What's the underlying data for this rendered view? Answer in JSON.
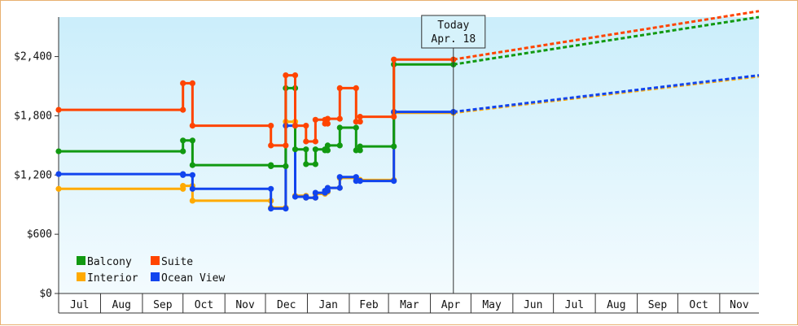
{
  "chart_data": {
    "type": "line",
    "subtype": "step",
    "ylim": [
      0,
      2800
    ],
    "y_ticks": [
      {
        "value": 0,
        "label": "$0"
      },
      {
        "value": 600,
        "label": "$600"
      },
      {
        "value": 1200,
        "label": "$1,200"
      },
      {
        "value": 1800,
        "label": "$1,800"
      },
      {
        "value": 2400,
        "label": "$2,400"
      }
    ],
    "x_range": [
      "2023-07-01",
      "2024-11-30"
    ],
    "x_ticks": [
      {
        "date": "2023-07-01",
        "label": "Jul"
      },
      {
        "date": "2023-08-01",
        "label": "Aug"
      },
      {
        "date": "2023-09-01",
        "label": "Sep"
      },
      {
        "date": "2023-10-01",
        "label": "Oct"
      },
      {
        "date": "2023-11-01",
        "label": "Nov"
      },
      {
        "date": "2023-12-01",
        "label": "Dec"
      },
      {
        "date": "2024-01-01",
        "label": "Jan"
      },
      {
        "date": "2024-02-01",
        "label": "Feb"
      },
      {
        "date": "2024-03-01",
        "label": "Mar"
      },
      {
        "date": "2024-04-01",
        "label": "Apr"
      },
      {
        "date": "2024-05-01",
        "label": "May"
      },
      {
        "date": "2024-06-01",
        "label": "Jun"
      },
      {
        "date": "2024-07-01",
        "label": "Jul"
      },
      {
        "date": "2024-08-01",
        "label": "Aug"
      },
      {
        "date": "2024-09-01",
        "label": "Sep"
      },
      {
        "date": "2024-10-01",
        "label": "Oct"
      },
      {
        "date": "2024-11-01",
        "label": "Nov"
      }
    ],
    "today": {
      "date": "2024-04-18",
      "line1": "Today",
      "line2": "Apr. 18"
    },
    "legend_placement": "bottom-left",
    "grid": false,
    "series": [
      {
        "name": "Balcony",
        "color": "#119911",
        "points": [
          [
            "2023-07-01",
            1440
          ],
          [
            "2023-10-01",
            1440
          ],
          [
            "2023-10-01",
            1550
          ],
          [
            "2023-10-08",
            1550
          ],
          [
            "2023-10-08",
            1300
          ],
          [
            "2023-12-05",
            1300
          ],
          [
            "2023-12-05",
            1290
          ],
          [
            "2023-12-16",
            1290
          ],
          [
            "2023-12-16",
            2080
          ],
          [
            "2023-12-23",
            2080
          ],
          [
            "2023-12-23",
            1460
          ],
          [
            "2023-12-31",
            1460
          ],
          [
            "2023-12-31",
            1310
          ],
          [
            "2024-01-07",
            1310
          ],
          [
            "2024-01-07",
            1460
          ],
          [
            "2024-01-14",
            1460
          ],
          [
            "2024-01-14",
            1450
          ],
          [
            "2024-01-16",
            1450
          ],
          [
            "2024-01-16",
            1500
          ],
          [
            "2024-01-25",
            1500
          ],
          [
            "2024-01-25",
            1680
          ],
          [
            "2024-02-06",
            1680
          ],
          [
            "2024-02-06",
            1450
          ],
          [
            "2024-02-09",
            1450
          ],
          [
            "2024-02-09",
            1490
          ],
          [
            "2024-03-05",
            1490
          ],
          [
            "2024-03-05",
            2320
          ],
          [
            "2024-04-18",
            2320
          ]
        ],
        "forecast": [
          [
            "2024-04-18",
            2320
          ],
          [
            "2024-11-30",
            2800
          ]
        ]
      },
      {
        "name": "Suite",
        "color": "#ff4400",
        "points": [
          [
            "2023-07-01",
            1860
          ],
          [
            "2023-10-01",
            1860
          ],
          [
            "2023-10-01",
            2130
          ],
          [
            "2023-10-08",
            2130
          ],
          [
            "2023-10-08",
            1700
          ],
          [
            "2023-12-05",
            1700
          ],
          [
            "2023-12-05",
            1500
          ],
          [
            "2023-12-16",
            1500
          ],
          [
            "2023-12-16",
            2210
          ],
          [
            "2023-12-23",
            2210
          ],
          [
            "2023-12-23",
            1700
          ],
          [
            "2023-12-31",
            1700
          ],
          [
            "2023-12-31",
            1540
          ],
          [
            "2024-01-07",
            1540
          ],
          [
            "2024-01-07",
            1760
          ],
          [
            "2024-01-14",
            1760
          ],
          [
            "2024-01-14",
            1720
          ],
          [
            "2024-01-16",
            1720
          ],
          [
            "2024-01-16",
            1770
          ],
          [
            "2024-01-25",
            1770
          ],
          [
            "2024-01-25",
            2080
          ],
          [
            "2024-02-06",
            2080
          ],
          [
            "2024-02-06",
            1740
          ],
          [
            "2024-02-09",
            1740
          ],
          [
            "2024-02-09",
            1790
          ],
          [
            "2024-03-05",
            1790
          ],
          [
            "2024-03-05",
            2370
          ],
          [
            "2024-04-18",
            2370
          ]
        ],
        "forecast": [
          [
            "2024-04-18",
            2370
          ],
          [
            "2024-11-30",
            2860
          ]
        ]
      },
      {
        "name": "Interior",
        "color": "#ffaa00",
        "points": [
          [
            "2023-07-01",
            1060
          ],
          [
            "2023-10-01",
            1060
          ],
          [
            "2023-10-01",
            1090
          ],
          [
            "2023-10-08",
            1090
          ],
          [
            "2023-10-08",
            940
          ],
          [
            "2023-12-05",
            940
          ],
          [
            "2023-12-05",
            870
          ],
          [
            "2023-12-16",
            870
          ],
          [
            "2023-12-16",
            1740
          ],
          [
            "2023-12-23",
            1740
          ],
          [
            "2023-12-23",
            990
          ],
          [
            "2023-12-31",
            990
          ],
          [
            "2023-12-31",
            970
          ],
          [
            "2024-01-07",
            970
          ],
          [
            "2024-01-07",
            1010
          ],
          [
            "2024-01-14",
            1010
          ],
          [
            "2024-01-14",
            1030
          ],
          [
            "2024-01-16",
            1030
          ],
          [
            "2024-01-16",
            1070
          ],
          [
            "2024-01-25",
            1070
          ],
          [
            "2024-01-25",
            1170
          ],
          [
            "2024-02-06",
            1170
          ],
          [
            "2024-02-06",
            1150
          ],
          [
            "2024-02-09",
            1150
          ],
          [
            "2024-02-09",
            1150
          ],
          [
            "2024-03-05",
            1150
          ],
          [
            "2024-03-05",
            1830
          ],
          [
            "2024-04-18",
            1830
          ]
        ],
        "forecast": [
          [
            "2024-04-18",
            1830
          ],
          [
            "2024-11-30",
            2200
          ]
        ]
      },
      {
        "name": "Ocean View",
        "color": "#1144ee",
        "points": [
          [
            "2023-07-01",
            1210
          ],
          [
            "2023-10-01",
            1210
          ],
          [
            "2023-10-01",
            1200
          ],
          [
            "2023-10-08",
            1200
          ],
          [
            "2023-10-08",
            1060
          ],
          [
            "2023-12-05",
            1060
          ],
          [
            "2023-12-05",
            860
          ],
          [
            "2023-12-16",
            860
          ],
          [
            "2023-12-16",
            1700
          ],
          [
            "2023-12-23",
            1700
          ],
          [
            "2023-12-23",
            980
          ],
          [
            "2023-12-31",
            980
          ],
          [
            "2023-12-31",
            970
          ],
          [
            "2024-01-07",
            970
          ],
          [
            "2024-01-07",
            1020
          ],
          [
            "2024-01-14",
            1020
          ],
          [
            "2024-01-14",
            1040
          ],
          [
            "2024-01-16",
            1040
          ],
          [
            "2024-01-16",
            1070
          ],
          [
            "2024-01-25",
            1070
          ],
          [
            "2024-01-25",
            1180
          ],
          [
            "2024-02-06",
            1180
          ],
          [
            "2024-02-06",
            1140
          ],
          [
            "2024-02-09",
            1140
          ],
          [
            "2024-02-09",
            1140
          ],
          [
            "2024-03-05",
            1140
          ],
          [
            "2024-03-05",
            1840
          ],
          [
            "2024-04-18",
            1840
          ]
        ],
        "forecast": [
          [
            "2024-04-18",
            1840
          ],
          [
            "2024-11-30",
            2210
          ]
        ]
      }
    ]
  }
}
